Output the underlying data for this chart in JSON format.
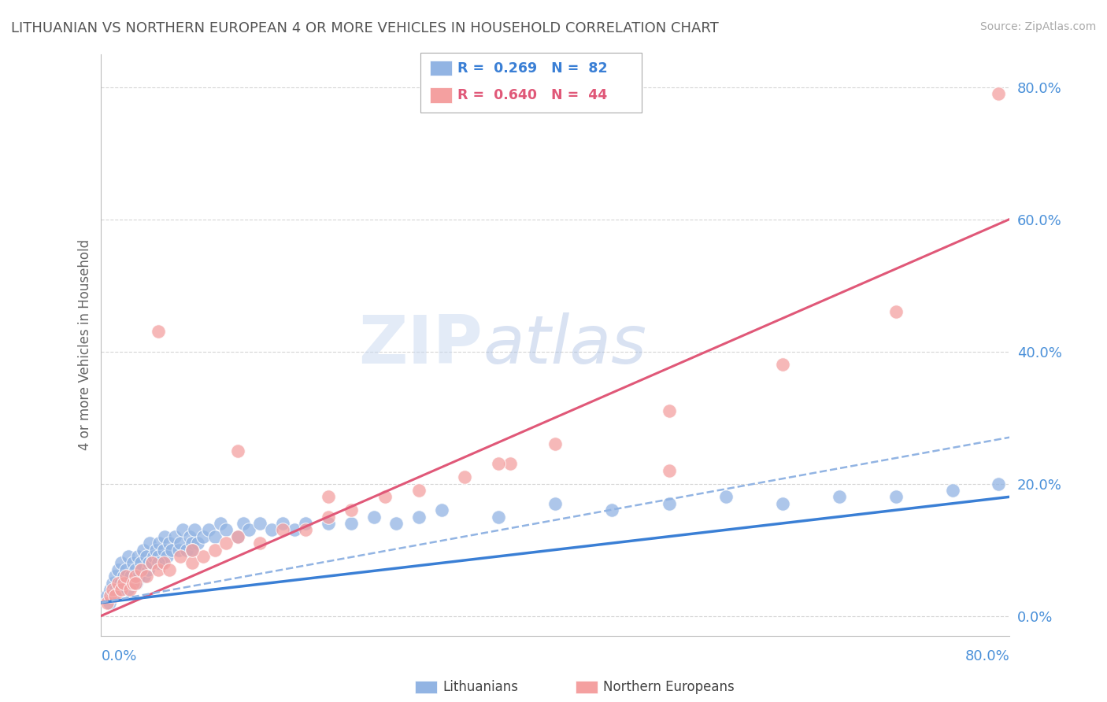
{
  "title": "LITHUANIAN VS NORTHERN EUROPEAN 4 OR MORE VEHICLES IN HOUSEHOLD CORRELATION CHART",
  "source": "Source: ZipAtlas.com",
  "ylabel": "4 or more Vehicles in Household",
  "ytick_values": [
    0,
    20,
    40,
    60,
    80
  ],
  "xlim": [
    0,
    80
  ],
  "ylim": [
    -3,
    85
  ],
  "blue_color": "#92b4e3",
  "pink_color": "#f4a0a0",
  "blue_line_color": "#3a7fd5",
  "pink_line_color": "#e05878",
  "dashed_line_color": "#92b4e3",
  "axis_label_color": "#4a90d9",
  "title_color": "#555555",
  "watermark_color": "#c8d8f0",
  "blue_scatter_x": [
    0.5,
    0.7,
    0.8,
    1.0,
    1.1,
    1.2,
    1.3,
    1.5,
    1.6,
    1.7,
    1.8,
    2.0,
    2.1,
    2.2,
    2.3,
    2.4,
    2.5,
    2.6,
    2.8,
    3.0,
    3.1,
    3.2,
    3.3,
    3.5,
    3.6,
    3.7,
    3.8,
    4.0,
    4.1,
    4.2,
    4.3,
    4.5,
    4.6,
    4.8,
    5.0,
    5.1,
    5.3,
    5.5,
    5.6,
    5.8,
    6.0,
    6.2,
    6.5,
    6.8,
    7.0,
    7.2,
    7.5,
    7.8,
    8.0,
    8.2,
    8.5,
    9.0,
    9.5,
    10.0,
    10.5,
    11.0,
    12.0,
    12.5,
    13.0,
    14.0,
    15.0,
    16.0,
    17.0,
    18.0,
    20.0,
    22.0,
    24.0,
    26.0,
    28.0,
    30.0,
    35.0,
    40.0,
    45.0,
    50.0,
    55.0,
    60.0,
    65.0,
    70.0,
    75.0,
    79.0,
    5.0,
    8.0
  ],
  "blue_scatter_y": [
    3,
    2,
    4,
    5,
    3,
    6,
    4,
    7,
    4,
    5,
    8,
    6,
    5,
    7,
    4,
    9,
    5,
    6,
    8,
    7,
    5,
    9,
    6,
    8,
    7,
    10,
    6,
    9,
    7,
    8,
    11,
    8,
    9,
    10,
    9,
    11,
    8,
    10,
    12,
    9,
    11,
    10,
    12,
    10,
    11,
    13,
    10,
    12,
    11,
    13,
    11,
    12,
    13,
    12,
    14,
    13,
    12,
    14,
    13,
    14,
    13,
    14,
    13,
    14,
    14,
    14,
    15,
    14,
    15,
    16,
    15,
    17,
    16,
    17,
    18,
    17,
    18,
    18,
    19,
    20,
    8,
    10
  ],
  "pink_scatter_x": [
    0.5,
    0.8,
    1.0,
    1.2,
    1.5,
    1.8,
    2.0,
    2.2,
    2.5,
    2.8,
    3.0,
    3.5,
    4.0,
    4.5,
    5.0,
    5.5,
    6.0,
    7.0,
    8.0,
    9.0,
    10.0,
    11.0,
    12.0,
    14.0,
    16.0,
    18.0,
    20.0,
    22.0,
    25.0,
    28.0,
    32.0,
    36.0,
    40.0,
    50.0,
    60.0,
    70.0,
    79.0,
    3.0,
    5.0,
    8.0,
    12.0,
    20.0,
    35.0,
    50.0
  ],
  "pink_scatter_y": [
    2,
    3,
    4,
    3,
    5,
    4,
    5,
    6,
    4,
    5,
    6,
    7,
    6,
    8,
    7,
    8,
    7,
    9,
    8,
    9,
    10,
    11,
    12,
    11,
    13,
    13,
    15,
    16,
    18,
    19,
    21,
    23,
    26,
    31,
    38,
    46,
    79,
    5,
    43,
    10,
    25,
    18,
    23,
    22
  ],
  "blue_line_x": [
    0,
    80
  ],
  "blue_line_y": [
    2,
    18
  ],
  "pink_line_x": [
    0,
    80
  ],
  "pink_line_y": [
    0,
    60
  ],
  "dashed_line_x": [
    0,
    80
  ],
  "dashed_line_y": [
    2,
    27
  ]
}
